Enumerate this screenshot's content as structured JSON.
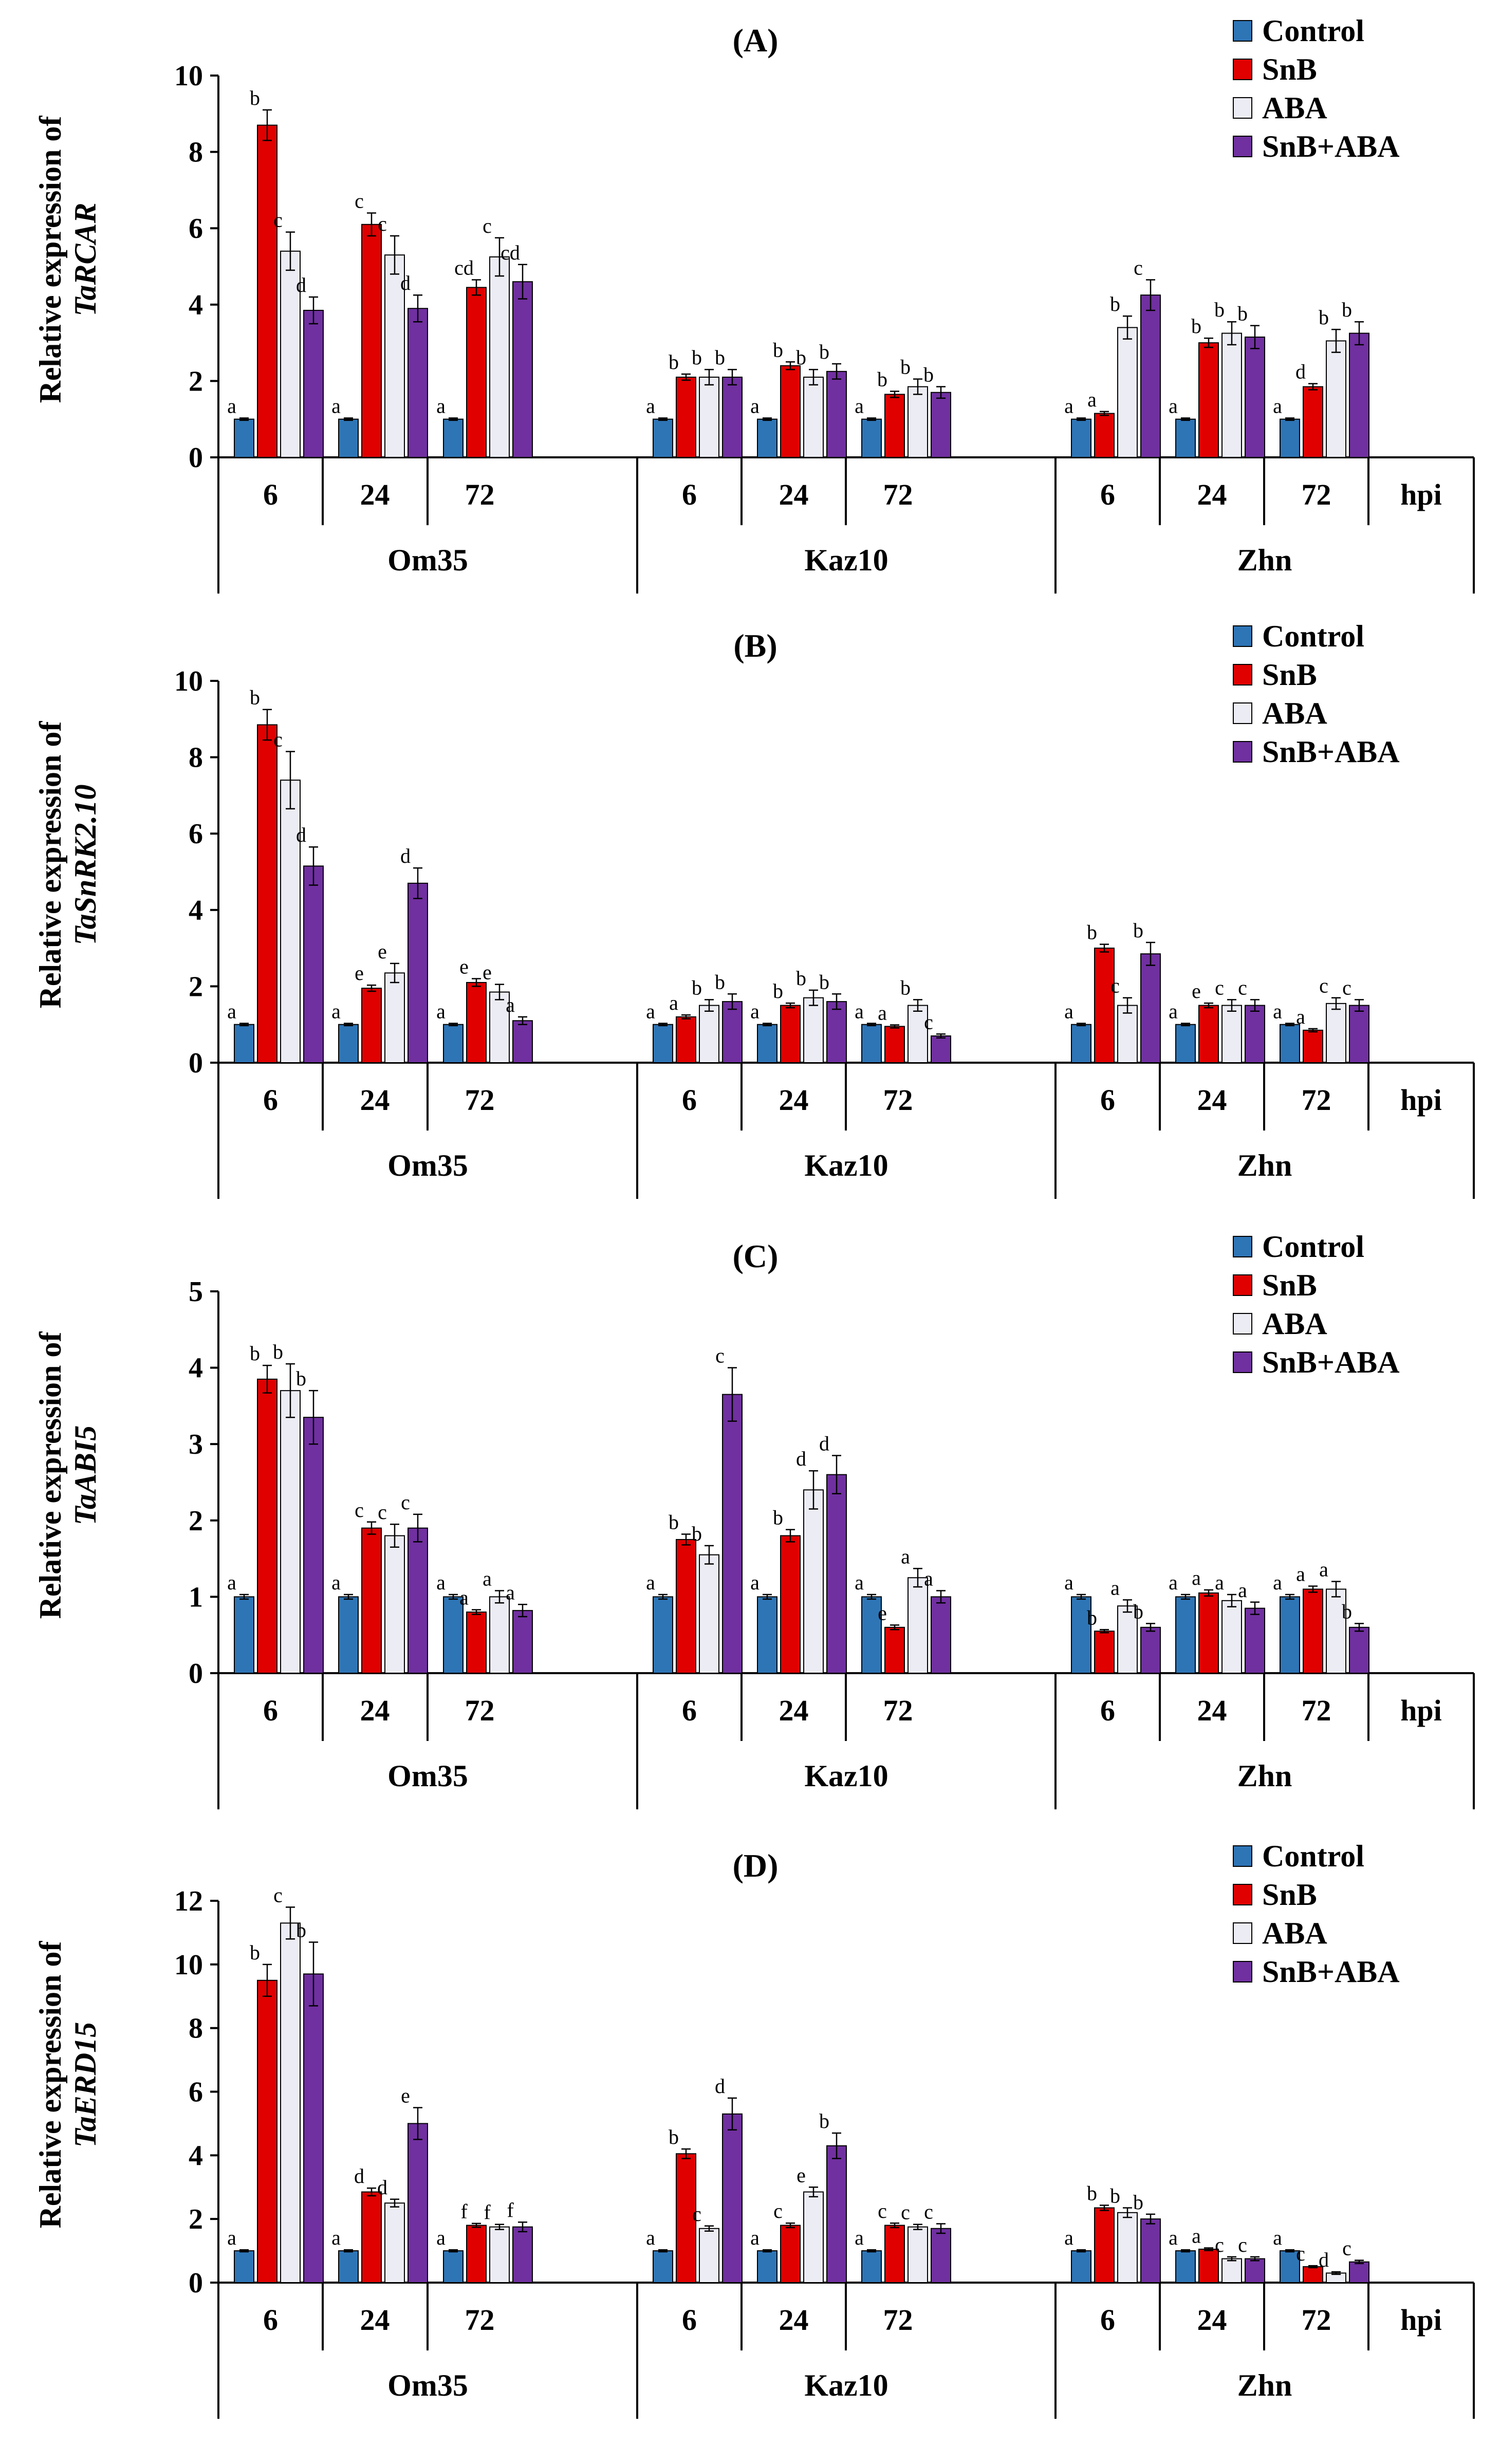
{
  "figure": {
    "series_names": [
      "Control",
      "SnB",
      "ABA",
      "SnB+ABA"
    ],
    "series_colors": [
      "#2e75b6",
      "#e00000",
      "#ececf4",
      "#7030a0"
    ],
    "time_labels": [
      "6",
      "24",
      "72"
    ],
    "time_unit_label": "hpi",
    "genotypes": [
      "Om35",
      "Kaz10",
      "Zhn"
    ]
  },
  "chart_data": [
    {
      "type": "bar",
      "panel": "(A)",
      "ylabel_prefix": "Relative expression of",
      "gene": "TaRCAR",
      "ylim": [
        0,
        10
      ],
      "yticks": [
        "0",
        "2",
        "4",
        "6",
        "8",
        "10"
      ],
      "groups": [
        {
          "genotype": "Om35",
          "time": "6",
          "values": [
            1.0,
            8.7,
            5.4,
            3.85
          ],
          "errors": [
            0.03,
            0.4,
            0.5,
            0.35
          ],
          "letters": [
            "a",
            "b",
            "c",
            "d"
          ]
        },
        {
          "genotype": "Om35",
          "time": "24",
          "values": [
            1.0,
            6.1,
            5.3,
            3.9
          ],
          "errors": [
            0.03,
            0.3,
            0.5,
            0.35
          ],
          "letters": [
            "a",
            "c",
            "c",
            "d"
          ]
        },
        {
          "genotype": "Om35",
          "time": "72",
          "values": [
            1.0,
            4.45,
            5.25,
            4.6
          ],
          "errors": [
            0.03,
            0.2,
            0.5,
            0.45
          ],
          "letters": [
            "a",
            "cd",
            "c",
            "cd"
          ]
        },
        {
          "genotype": "Kaz10",
          "time": "6",
          "values": [
            1.0,
            2.1,
            2.1,
            2.1
          ],
          "errors": [
            0.03,
            0.08,
            0.2,
            0.2
          ],
          "letters": [
            "a",
            "b",
            "b",
            "b"
          ]
        },
        {
          "genotype": "Kaz10",
          "time": "24",
          "values": [
            1.0,
            2.4,
            2.1,
            2.25
          ],
          "errors": [
            0.03,
            0.1,
            0.2,
            0.2
          ],
          "letters": [
            "a",
            "b",
            "b",
            "b"
          ]
        },
        {
          "genotype": "Kaz10",
          "time": "72",
          "values": [
            1.0,
            1.65,
            1.85,
            1.7
          ],
          "errors": [
            0.03,
            0.08,
            0.2,
            0.15
          ],
          "letters": [
            "a",
            "b",
            "b",
            "b"
          ]
        },
        {
          "genotype": "Zhn",
          "time": "6",
          "values": [
            1.0,
            1.15,
            3.4,
            4.25
          ],
          "errors": [
            0.03,
            0.05,
            0.3,
            0.4
          ],
          "letters": [
            "a",
            "a",
            "b",
            "c"
          ]
        },
        {
          "genotype": "Zhn",
          "time": "24",
          "values": [
            1.0,
            3.0,
            3.25,
            3.15
          ],
          "errors": [
            0.03,
            0.12,
            0.3,
            0.3
          ],
          "letters": [
            "a",
            "b",
            "b",
            "b"
          ]
        },
        {
          "genotype": "Zhn",
          "time": "72",
          "values": [
            1.0,
            1.85,
            3.05,
            3.25
          ],
          "errors": [
            0.03,
            0.08,
            0.3,
            0.3
          ],
          "letters": [
            "a",
            "d",
            "b",
            "b"
          ]
        }
      ]
    },
    {
      "type": "bar",
      "panel": "(B)",
      "ylabel_prefix": "Relative expression of",
      "gene": "TaSnRK2.10",
      "ylim": [
        0,
        10
      ],
      "yticks": [
        "0",
        "2",
        "4",
        "6",
        "8",
        "10"
      ],
      "groups": [
        {
          "genotype": "Om35",
          "time": "6",
          "values": [
            1.0,
            8.85,
            7.4,
            5.15
          ],
          "errors": [
            0.03,
            0.4,
            0.75,
            0.5
          ],
          "letters": [
            "a",
            "b",
            "c",
            "d"
          ]
        },
        {
          "genotype": "Om35",
          "time": "24",
          "values": [
            1.0,
            1.95,
            2.35,
            4.7
          ],
          "errors": [
            0.03,
            0.08,
            0.25,
            0.4
          ],
          "letters": [
            "a",
            "e",
            "e",
            "d"
          ]
        },
        {
          "genotype": "Om35",
          "time": "72",
          "values": [
            1.0,
            2.1,
            1.85,
            1.1
          ],
          "errors": [
            0.03,
            0.1,
            0.2,
            0.1
          ],
          "letters": [
            "a",
            "e",
            "e",
            "a"
          ]
        },
        {
          "genotype": "Kaz10",
          "time": "6",
          "values": [
            1.0,
            1.2,
            1.5,
            1.6
          ],
          "errors": [
            0.03,
            0.05,
            0.15,
            0.2
          ],
          "letters": [
            "a",
            "a",
            "b",
            "b"
          ]
        },
        {
          "genotype": "Kaz10",
          "time": "24",
          "values": [
            1.0,
            1.5,
            1.7,
            1.6
          ],
          "errors": [
            0.03,
            0.06,
            0.2,
            0.2
          ],
          "letters": [
            "a",
            "b",
            "b",
            "b"
          ]
        },
        {
          "genotype": "Kaz10",
          "time": "72",
          "values": [
            1.0,
            0.95,
            1.5,
            0.7
          ],
          "errors": [
            0.03,
            0.04,
            0.15,
            0.05
          ],
          "letters": [
            "a",
            "a",
            "b",
            "c"
          ]
        },
        {
          "genotype": "Zhn",
          "time": "6",
          "values": [
            1.0,
            3.0,
            1.5,
            2.85
          ],
          "errors": [
            0.03,
            0.1,
            0.2,
            0.3
          ],
          "letters": [
            "a",
            "b",
            "c",
            "b"
          ]
        },
        {
          "genotype": "Zhn",
          "time": "24",
          "values": [
            1.0,
            1.5,
            1.5,
            1.5
          ],
          "errors": [
            0.03,
            0.06,
            0.15,
            0.15
          ],
          "letters": [
            "a",
            "e",
            "c",
            "c"
          ]
        },
        {
          "genotype": "Zhn",
          "time": "72",
          "values": [
            1.0,
            0.85,
            1.55,
            1.5
          ],
          "errors": [
            0.03,
            0.04,
            0.15,
            0.15
          ],
          "letters": [
            "a",
            "a",
            "c",
            "c"
          ]
        }
      ]
    },
    {
      "type": "bar",
      "panel": "(C)",
      "ylabel_prefix": "Relative expression of",
      "gene": "TaABI5",
      "ylim": [
        0,
        5
      ],
      "yticks": [
        "0",
        "1",
        "2",
        "3",
        "4",
        "5"
      ],
      "groups": [
        {
          "genotype": "Om35",
          "time": "6",
          "values": [
            1.0,
            3.85,
            3.7,
            3.35
          ],
          "errors": [
            0.03,
            0.18,
            0.35,
            0.35
          ],
          "letters": [
            "a",
            "b",
            "b",
            "b"
          ]
        },
        {
          "genotype": "Om35",
          "time": "24",
          "values": [
            1.0,
            1.9,
            1.8,
            1.9
          ],
          "errors": [
            0.03,
            0.08,
            0.15,
            0.18
          ],
          "letters": [
            "a",
            "c",
            "c",
            "c"
          ]
        },
        {
          "genotype": "Om35",
          "time": "72",
          "values": [
            1.0,
            0.8,
            1.0,
            0.82
          ],
          "errors": [
            0.03,
            0.03,
            0.08,
            0.08
          ],
          "letters": [
            "a",
            "a",
            "a",
            "a"
          ]
        },
        {
          "genotype": "Kaz10",
          "time": "6",
          "values": [
            1.0,
            1.75,
            1.55,
            3.65
          ],
          "errors": [
            0.03,
            0.07,
            0.12,
            0.35
          ],
          "letters": [
            "a",
            "b",
            "b",
            "c"
          ]
        },
        {
          "genotype": "Kaz10",
          "time": "24",
          "values": [
            1.0,
            1.8,
            2.4,
            2.6
          ],
          "errors": [
            0.03,
            0.08,
            0.25,
            0.25
          ],
          "letters": [
            "a",
            "b",
            "d",
            "d"
          ]
        },
        {
          "genotype": "Kaz10",
          "time": "72",
          "values": [
            1.0,
            0.6,
            1.25,
            1.0
          ],
          "errors": [
            0.03,
            0.03,
            0.12,
            0.08
          ],
          "letters": [
            "a",
            "e",
            "a",
            "a"
          ]
        },
        {
          "genotype": "Zhn",
          "time": "6",
          "values": [
            1.0,
            0.55,
            0.88,
            0.6
          ],
          "errors": [
            0.03,
            0.02,
            0.08,
            0.05
          ],
          "letters": [
            "a",
            "b",
            "a",
            "b"
          ]
        },
        {
          "genotype": "Zhn",
          "time": "24",
          "values": [
            1.0,
            1.05,
            0.95,
            0.85
          ],
          "errors": [
            0.03,
            0.04,
            0.08,
            0.08
          ],
          "letters": [
            "a",
            "a",
            "a",
            "a"
          ]
        },
        {
          "genotype": "Zhn",
          "time": "72",
          "values": [
            1.0,
            1.1,
            1.1,
            0.6
          ],
          "errors": [
            0.03,
            0.04,
            0.1,
            0.05
          ],
          "letters": [
            "a",
            "a",
            "a",
            "b"
          ]
        }
      ]
    },
    {
      "type": "bar",
      "panel": "(D)",
      "ylabel_prefix": "Relative expression of",
      "gene": "TaERD15",
      "ylim": [
        0,
        12
      ],
      "yticks": [
        "0",
        "2",
        "4",
        "6",
        "8",
        "10",
        "12"
      ],
      "groups": [
        {
          "genotype": "Om35",
          "time": "6",
          "values": [
            1.0,
            9.5,
            11.3,
            9.7
          ],
          "errors": [
            0.03,
            0.5,
            0.5,
            1.0
          ],
          "letters": [
            "a",
            "b",
            "c",
            "b"
          ]
        },
        {
          "genotype": "Om35",
          "time": "24",
          "values": [
            1.0,
            2.85,
            2.5,
            5.0
          ],
          "errors": [
            0.03,
            0.12,
            0.12,
            0.5
          ],
          "letters": [
            "a",
            "d",
            "d",
            "e"
          ]
        },
        {
          "genotype": "Om35",
          "time": "72",
          "values": [
            1.0,
            1.8,
            1.75,
            1.75
          ],
          "errors": [
            0.03,
            0.06,
            0.08,
            0.15
          ],
          "letters": [
            "a",
            "f",
            "f",
            "f"
          ]
        },
        {
          "genotype": "Kaz10",
          "time": "6",
          "values": [
            1.0,
            4.05,
            1.7,
            5.3
          ],
          "errors": [
            0.03,
            0.15,
            0.08,
            0.5
          ],
          "letters": [
            "a",
            "b",
            "c",
            "d"
          ]
        },
        {
          "genotype": "Kaz10",
          "time": "24",
          "values": [
            1.0,
            1.8,
            2.85,
            4.3
          ],
          "errors": [
            0.03,
            0.07,
            0.15,
            0.4
          ],
          "letters": [
            "a",
            "c",
            "e",
            "b"
          ]
        },
        {
          "genotype": "Kaz10",
          "time": "72",
          "values": [
            1.0,
            1.8,
            1.75,
            1.7
          ],
          "errors": [
            0.03,
            0.07,
            0.08,
            0.15
          ],
          "letters": [
            "a",
            "c",
            "c",
            "c"
          ]
        },
        {
          "genotype": "Zhn",
          "time": "6",
          "values": [
            1.0,
            2.35,
            2.2,
            2.0
          ],
          "errors": [
            0.03,
            0.08,
            0.15,
            0.15
          ],
          "letters": [
            "a",
            "b",
            "b",
            "b"
          ]
        },
        {
          "genotype": "Zhn",
          "time": "24",
          "values": [
            1.0,
            1.05,
            0.75,
            0.75
          ],
          "errors": [
            0.03,
            0.04,
            0.06,
            0.06
          ],
          "letters": [
            "a",
            "a",
            "c",
            "c"
          ]
        },
        {
          "genotype": "Zhn",
          "time": "72",
          "values": [
            1.0,
            0.5,
            0.3,
            0.65
          ],
          "errors": [
            0.03,
            0.03,
            0.04,
            0.05
          ],
          "letters": [
            "a",
            "c",
            "d",
            "c"
          ]
        }
      ]
    }
  ]
}
